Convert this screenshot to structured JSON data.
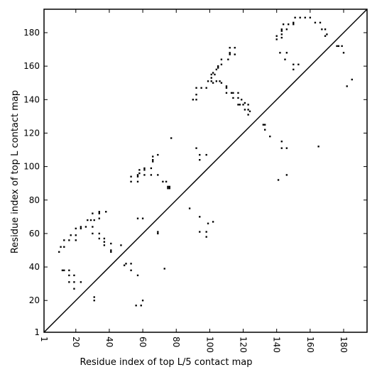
{
  "chart_data": {
    "type": "scatter",
    "xlabel": "Residue index of top L/5 contact map",
    "ylabel": "Residue index of top L contact map",
    "xlim": [
      1,
      194
    ],
    "ylim": [
      1,
      194
    ],
    "xticks": [
      1,
      20,
      40,
      60,
      80,
      100,
      120,
      140,
      160,
      180
    ],
    "yticks": [
      1,
      20,
      40,
      60,
      80,
      100,
      120,
      140,
      160,
      180
    ],
    "marker": "square",
    "diagonal": true,
    "grid": false,
    "colors": {
      "points": "#000000",
      "axes": "#000000",
      "background": "#ffffff"
    },
    "points": [
      [
        10,
        49
      ],
      [
        11,
        52
      ],
      [
        12,
        38
      ],
      [
        13,
        38
      ],
      [
        13,
        52
      ],
      [
        13,
        56
      ],
      [
        16,
        38
      ],
      [
        16,
        35
      ],
      [
        16,
        31
      ],
      [
        16,
        56
      ],
      [
        17,
        59
      ],
      [
        19,
        35
      ],
      [
        19,
        31
      ],
      [
        19,
        27
      ],
      [
        20,
        56
      ],
      [
        20,
        59
      ],
      [
        20,
        63
      ],
      [
        23,
        31
      ],
      [
        23,
        63
      ],
      [
        23,
        64
      ],
      [
        26,
        64
      ],
      [
        27,
        68
      ],
      [
        29,
        68
      ],
      [
        30,
        64
      ],
      [
        30,
        60
      ],
      [
        30,
        72
      ],
      [
        31,
        20
      ],
      [
        31,
        22
      ],
      [
        31,
        68
      ],
      [
        34,
        72
      ],
      [
        34,
        73
      ],
      [
        34,
        69
      ],
      [
        34,
        60
      ],
      [
        34,
        57
      ],
      [
        37,
        57
      ],
      [
        37,
        55
      ],
      [
        37,
        53
      ],
      [
        38,
        73
      ],
      [
        41,
        49
      ],
      [
        41,
        50
      ],
      [
        41,
        54
      ],
      [
        47,
        53
      ],
      [
        49,
        41
      ],
      [
        50,
        42
      ],
      [
        53,
        42
      ],
      [
        53,
        38
      ],
      [
        53,
        91
      ],
      [
        53,
        94
      ],
      [
        56,
        17
      ],
      [
        57,
        35
      ],
      [
        57,
        69
      ],
      [
        57,
        91
      ],
      [
        57,
        94
      ],
      [
        57,
        95
      ],
      [
        58,
        96
      ],
      [
        58,
        98
      ],
      [
        59,
        17
      ],
      [
        60,
        20
      ],
      [
        60,
        69
      ],
      [
        61,
        95
      ],
      [
        61,
        98
      ],
      [
        61,
        99
      ],
      [
        65,
        95
      ],
      [
        65,
        99
      ],
      [
        66,
        103
      ],
      [
        66,
        104
      ],
      [
        66,
        106
      ],
      [
        69,
        60
      ],
      [
        69,
        61
      ],
      [
        69,
        95
      ],
      [
        69,
        107
      ],
      [
        72,
        91
      ],
      [
        73,
        39
      ],
      [
        74,
        91
      ],
      [
        75,
        87
      ],
      [
        75,
        88
      ],
      [
        76,
        87
      ],
      [
        76,
        88
      ],
      [
        77,
        117
      ],
      [
        88,
        75
      ],
      [
        90,
        140
      ],
      [
        92,
        140
      ],
      [
        92,
        111
      ],
      [
        92,
        143
      ],
      [
        92,
        147
      ],
      [
        94,
        70
      ],
      [
        94,
        61
      ],
      [
        94,
        104
      ],
      [
        94,
        107
      ],
      [
        95,
        147
      ],
      [
        98,
        58
      ],
      [
        98,
        61
      ],
      [
        98,
        107
      ],
      [
        98,
        147
      ],
      [
        99,
        66
      ],
      [
        99,
        151
      ],
      [
        101,
        151
      ],
      [
        101,
        153
      ],
      [
        101,
        155
      ],
      [
        102,
        67
      ],
      [
        102,
        150
      ],
      [
        102,
        156
      ],
      [
        103,
        155
      ],
      [
        104,
        158
      ],
      [
        104,
        151
      ],
      [
        105,
        159
      ],
      [
        105,
        160
      ],
      [
        106,
        151
      ],
      [
        107,
        150
      ],
      [
        107,
        161
      ],
      [
        107,
        164
      ],
      [
        110,
        144
      ],
      [
        110,
        147
      ],
      [
        110,
        148
      ],
      [
        111,
        164
      ],
      [
        112,
        167
      ],
      [
        112,
        168
      ],
      [
        112,
        171
      ],
      [
        113,
        144
      ],
      [
        114,
        141
      ],
      [
        114,
        144
      ],
      [
        115,
        167
      ],
      [
        115,
        171
      ],
      [
        117,
        137
      ],
      [
        117,
        141
      ],
      [
        117,
        144
      ],
      [
        118,
        137
      ],
      [
        119,
        140
      ],
      [
        120,
        137
      ],
      [
        121,
        138
      ],
      [
        121,
        134
      ],
      [
        123,
        131
      ],
      [
        123,
        134
      ],
      [
        123,
        137
      ],
      [
        124,
        133
      ],
      [
        132,
        125
      ],
      [
        133,
        122
      ],
      [
        133,
        125
      ],
      [
        136,
        118
      ],
      [
        140,
        176
      ],
      [
        140,
        178
      ],
      [
        141,
        92
      ],
      [
        142,
        168
      ],
      [
        143,
        111
      ],
      [
        143,
        115
      ],
      [
        143,
        177
      ],
      [
        143,
        179
      ],
      [
        143,
        181
      ],
      [
        143,
        182
      ],
      [
        144,
        185
      ],
      [
        145,
        164
      ],
      [
        146,
        95
      ],
      [
        146,
        111
      ],
      [
        146,
        168
      ],
      [
        146,
        182
      ],
      [
        147,
        185
      ],
      [
        150,
        158
      ],
      [
        150,
        161
      ],
      [
        150,
        185
      ],
      [
        150,
        186
      ],
      [
        151,
        189
      ],
      [
        153,
        161
      ],
      [
        154,
        189
      ],
      [
        157,
        189
      ],
      [
        160,
        189
      ],
      [
        163,
        186
      ],
      [
        165,
        112
      ],
      [
        166,
        186
      ],
      [
        167,
        182
      ],
      [
        169,
        182
      ],
      [
        169,
        178
      ],
      [
        170,
        179
      ],
      [
        176,
        172
      ],
      [
        177,
        172
      ],
      [
        179,
        172
      ],
      [
        180,
        168
      ],
      [
        182,
        148
      ],
      [
        185,
        152
      ]
    ]
  }
}
